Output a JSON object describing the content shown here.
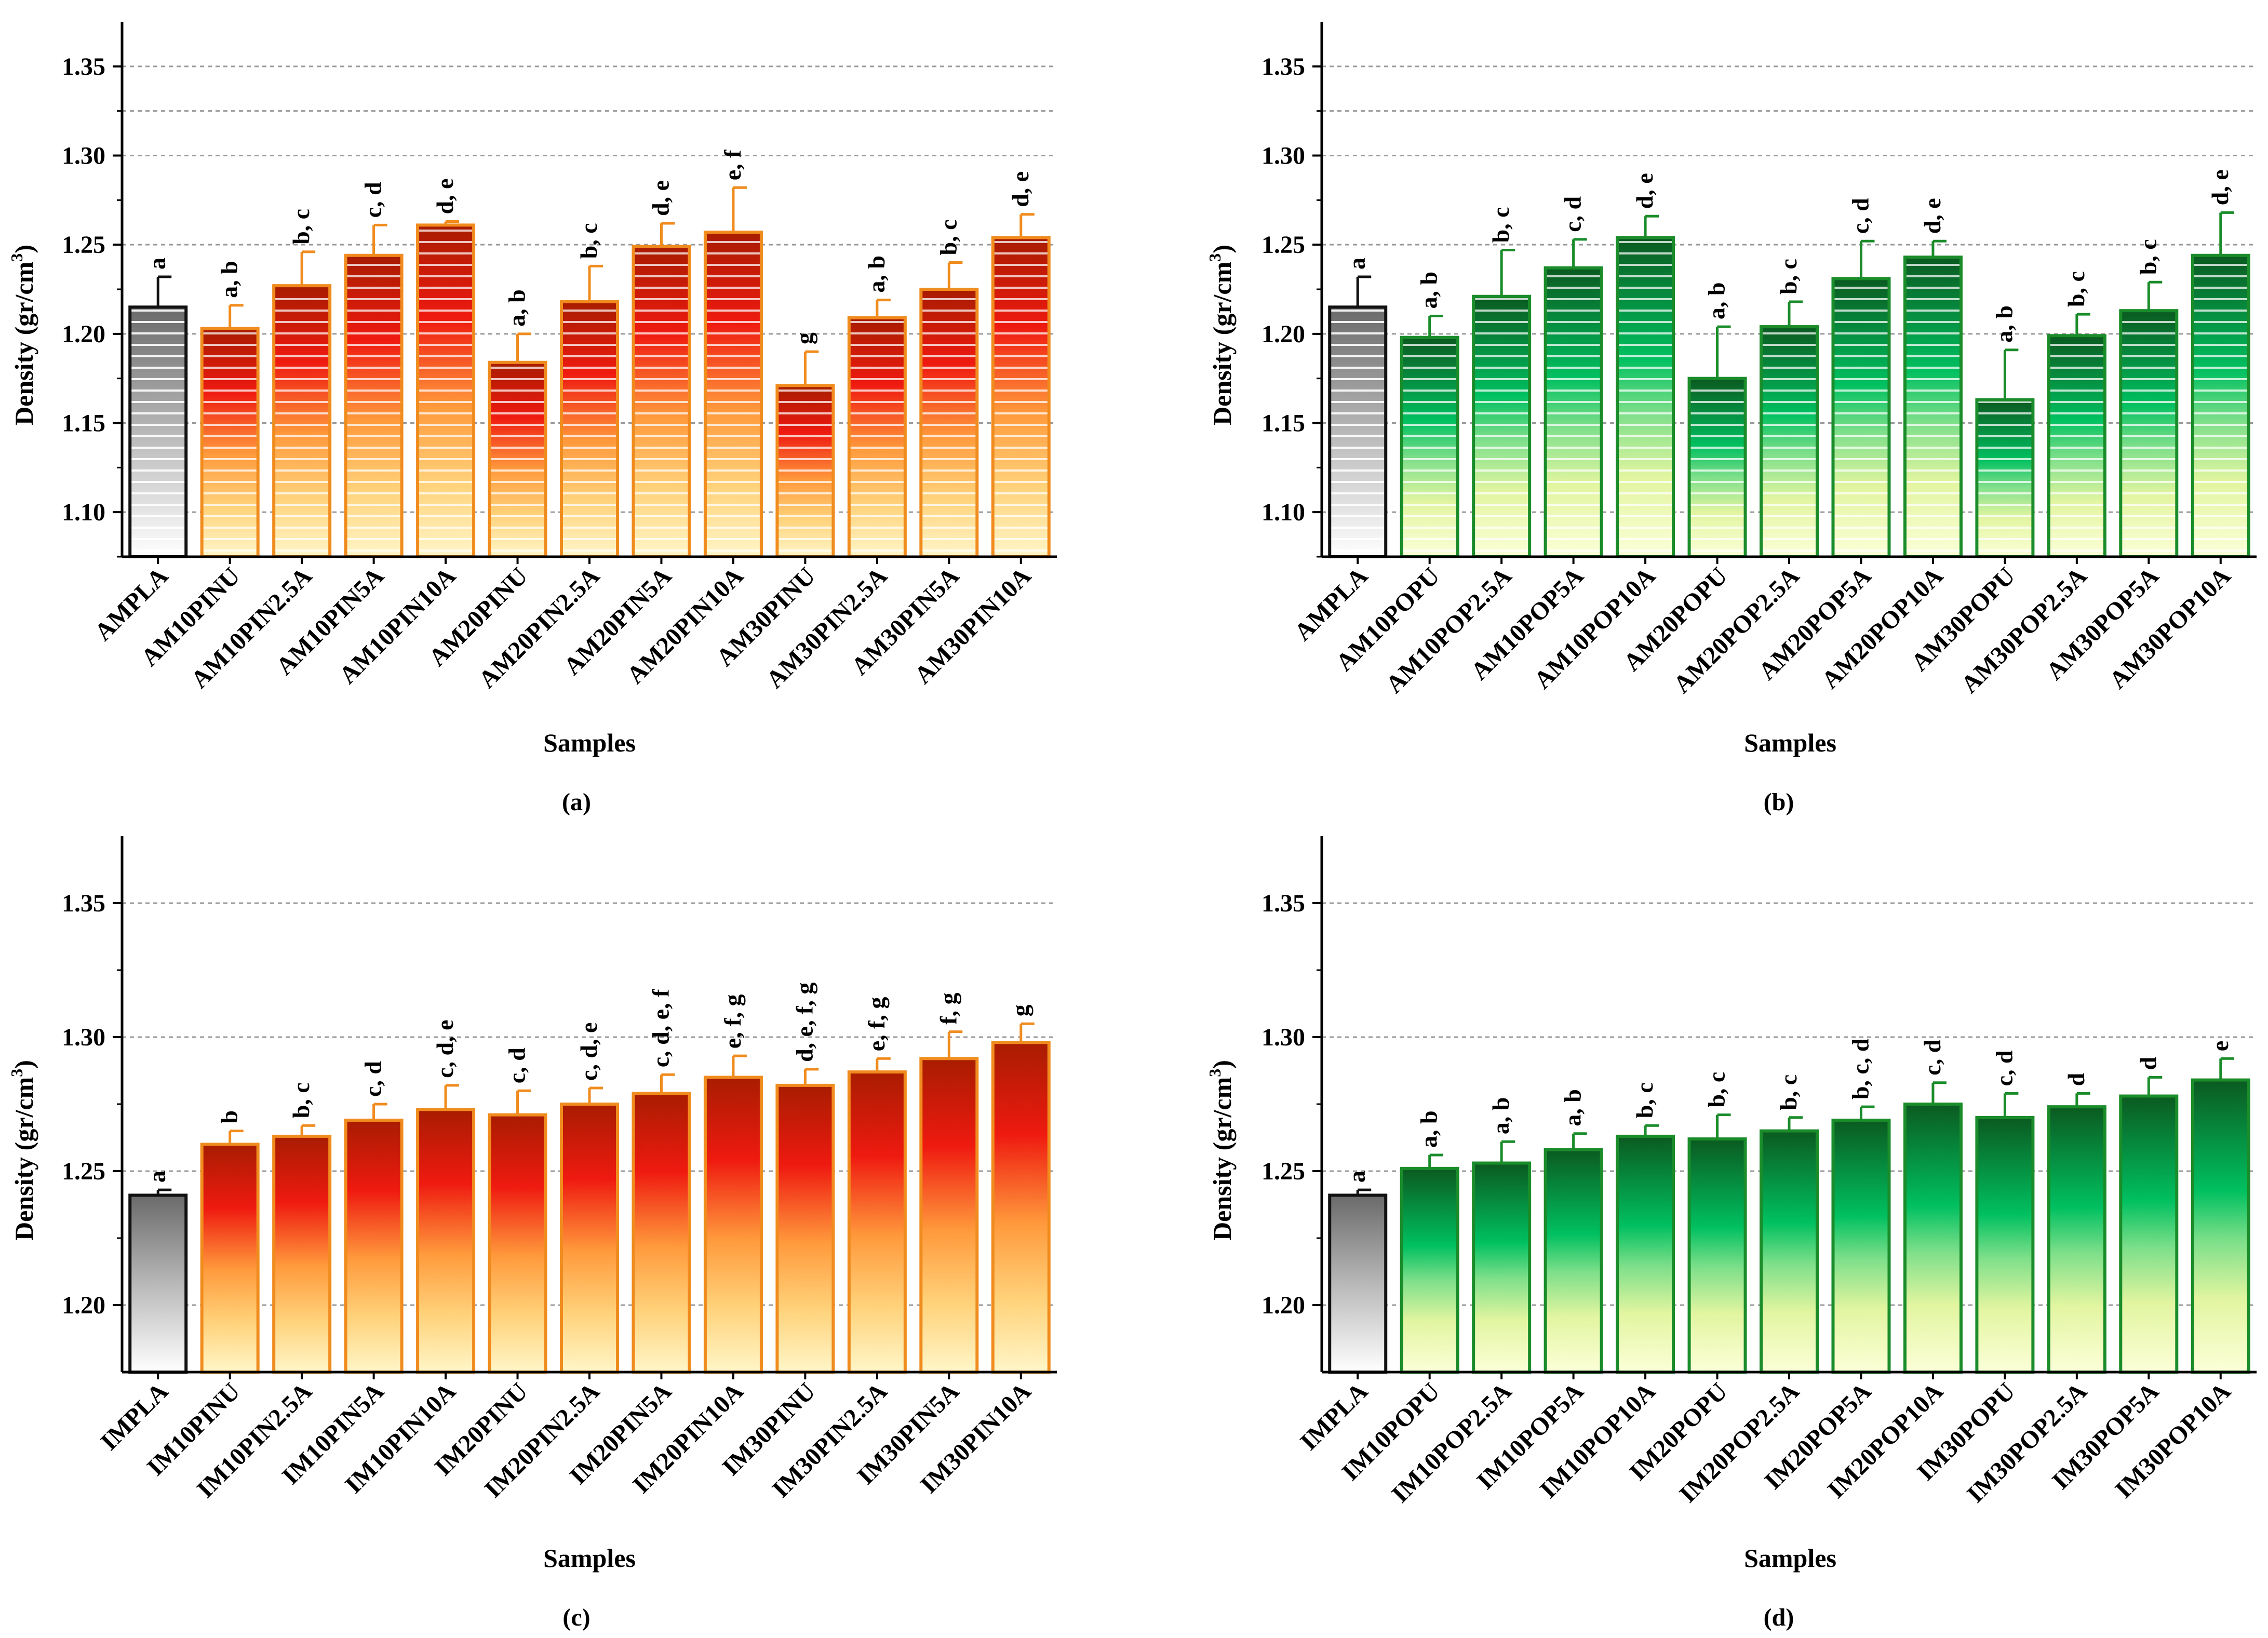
{
  "colors": {
    "orange_stroke": "#f08c1e",
    "green_stroke": "#1a8c2a",
    "ref_stroke": "#111111",
    "grid": "#9a9a9a"
  },
  "chart_data": [
    {
      "type": "bar",
      "panel_label": "(a)",
      "palette": "orange",
      "style": "striped",
      "xlabel": "Samples",
      "ylabel": "Density (gr/cm",
      "ylabel_sup": "3",
      "ylabel_end": ")",
      "ylim": [
        1.075,
        1.375
      ],
      "yticks": [
        1.1,
        1.15,
        1.2,
        1.25,
        1.3,
        1.35
      ],
      "ytick_labels": [
        "1.10",
        "1.15",
        "1.20",
        "1.25",
        "1.30",
        "1.35"
      ],
      "categories": [
        "AMPLA",
        "AM10PINU",
        "AM10PIN2.5A",
        "AM10PIN5A",
        "AM10PIN10A",
        "AM20PINU",
        "AM20PIN2.5A",
        "AM20PIN5A",
        "AM20PIN10A",
        "AM30PINU",
        "AM30PIN2.5A",
        "AM30PIN5A",
        "AM30PIN10A"
      ],
      "values": [
        1.215,
        1.203,
        1.227,
        1.244,
        1.261,
        1.184,
        1.218,
        1.249,
        1.257,
        1.171,
        1.209,
        1.225,
        1.254
      ],
      "errors": [
        0.017,
        0.013,
        0.019,
        0.017,
        0.002,
        0.016,
        0.02,
        0.013,
        0.025,
        0.019,
        0.01,
        0.015,
        0.013
      ],
      "letters": [
        "a",
        "a, b",
        "b, c",
        "c, d",
        "d, e",
        "a, b",
        "b, c",
        "d, e",
        "e, f",
        "g",
        "a, b",
        "b, c",
        "d, e"
      ]
    },
    {
      "type": "bar",
      "panel_label": "(b)",
      "palette": "green",
      "style": "striped",
      "xlabel": "Samples",
      "ylabel": "Density (gr/cm",
      "ylabel_sup": "3",
      "ylabel_end": ")",
      "ylim": [
        1.075,
        1.375
      ],
      "yticks": [
        1.1,
        1.15,
        1.2,
        1.25,
        1.3,
        1.35
      ],
      "ytick_labels": [
        "1.10",
        "1.15",
        "1.20",
        "1.25",
        "1.30",
        "1.35"
      ],
      "categories": [
        "AMPLA",
        "AM10POPU",
        "AM10POP2.5A",
        "AM10POP5A",
        "AM10POP10A",
        "AM20POPU",
        "AM20POP2.5A",
        "AM20POP5A",
        "AM20POP10A",
        "AM30POPU",
        "AM30POP2.5A",
        "AM30POP5A",
        "AM30POP10A"
      ],
      "values": [
        1.215,
        1.198,
        1.221,
        1.237,
        1.254,
        1.175,
        1.204,
        1.231,
        1.243,
        1.163,
        1.199,
        1.213,
        1.244
      ],
      "errors": [
        0.017,
        0.012,
        0.026,
        0.016,
        0.012,
        0.029,
        0.014,
        0.021,
        0.009,
        0.028,
        0.012,
        0.016,
        0.024
      ],
      "letters": [
        "a",
        "a, b",
        "b, c",
        "c, d",
        "d, e",
        "a, b",
        "b, c",
        "c, d",
        "d, e",
        "a, b",
        "b, c",
        "b, c",
        "d, e"
      ]
    },
    {
      "type": "bar",
      "panel_label": "(c)",
      "palette": "orange",
      "style": "gradient",
      "xlabel": "Samples",
      "ylabel": "Density (gr/cm",
      "ylabel_sup": "3",
      "ylabel_end": ")",
      "ylim": [
        1.175,
        1.375
      ],
      "yticks": [
        1.2,
        1.25,
        1.3,
        1.35
      ],
      "ytick_labels": [
        "1.20",
        "1.25",
        "1.30",
        "1.35"
      ],
      "categories": [
        "IMPLA",
        "IM10PINU",
        "IM10PIN2.5A",
        "IM10PIN5A",
        "IM10PIN10A",
        "IM20PINU",
        "IM20PIN2.5A",
        "IM20PIN5A",
        "IM20PIN10A",
        "IM30PINU",
        "IM30PIN2.5A",
        "IM30PIN5A",
        "IM30PIN10A"
      ],
      "values": [
        1.241,
        1.26,
        1.263,
        1.269,
        1.273,
        1.271,
        1.275,
        1.279,
        1.285,
        1.282,
        1.287,
        1.292,
        1.298
      ],
      "errors": [
        0.002,
        0.005,
        0.004,
        0.006,
        0.009,
        0.009,
        0.006,
        0.007,
        0.008,
        0.006,
        0.005,
        0.01,
        0.007
      ],
      "letters": [
        "a",
        "b",
        "b, c",
        "c, d",
        "c, d, e",
        "c, d",
        "c, d, e",
        "c, d, e, f",
        "e, f, g",
        "d, e, f, g",
        "e, f, g",
        "f, g",
        "g"
      ]
    },
    {
      "type": "bar",
      "panel_label": "(d)",
      "palette": "green",
      "style": "gradient",
      "xlabel": "Samples",
      "ylabel": "Density (gr/cm",
      "ylabel_sup": "3",
      "ylabel_end": ")",
      "ylim": [
        1.175,
        1.375
      ],
      "yticks": [
        1.2,
        1.25,
        1.3,
        1.35
      ],
      "ytick_labels": [
        "1.20",
        "1.25",
        "1.30",
        "1.35"
      ],
      "categories": [
        "IMPLA",
        "IM10POPU",
        "IM10POP2.5A",
        "IM10POP5A",
        "IM10POP10A",
        "IM20POPU",
        "IM20POP2.5A",
        "IM20POP5A",
        "IM20POP10A",
        "IM30POPU",
        "IM30POP2.5A",
        "IM30POP5A",
        "IM30POP10A"
      ],
      "values": [
        1.241,
        1.251,
        1.253,
        1.258,
        1.263,
        1.262,
        1.265,
        1.269,
        1.275,
        1.27,
        1.274,
        1.278,
        1.284
      ],
      "errors": [
        0.002,
        0.005,
        0.008,
        0.006,
        0.004,
        0.009,
        0.005,
        0.005,
        0.008,
        0.009,
        0.005,
        0.007,
        0.008
      ],
      "letters": [
        "a",
        "a, b",
        "a, b",
        "a, b",
        "b, c",
        "b, c",
        "b, c",
        "b, c, d",
        "c, d",
        "c, d",
        "d",
        "d",
        "e"
      ]
    }
  ]
}
